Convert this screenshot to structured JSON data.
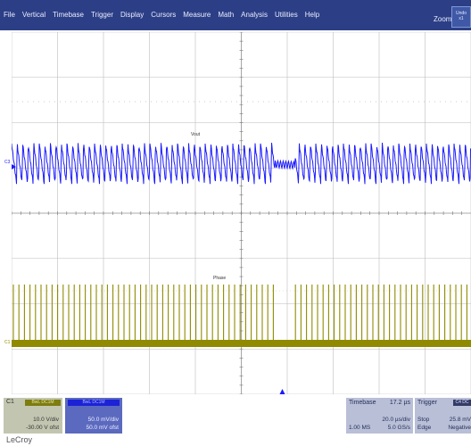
{
  "menu": {
    "items": [
      "File",
      "Vertical",
      "Timebase",
      "Trigger",
      "Display",
      "Cursors",
      "Measure",
      "Math",
      "Analysis",
      "Utilities",
      "Help"
    ],
    "zoom": "Zoom",
    "undo_label": "Undo",
    "undo_sub": "x1"
  },
  "traces": {
    "vout_label": "Vout",
    "phase_label": "Phase",
    "c3_marker": "C3",
    "c1_marker": "C1",
    "colors": {
      "vout": "#1a1aff",
      "phase": "#8f8a00",
      "grid": "#bcbcbc"
    }
  },
  "channel1": {
    "name": "C1",
    "badge": "BwL DC1M",
    "volts_div": "10.0 V/div",
    "offset": "-30.00 V ofst"
  },
  "channel3": {
    "badge": "BwL DC1M",
    "volts_div": "50.0 mV/div",
    "offset": "50.0 mV ofst"
  },
  "timebase": {
    "title": "Timebase",
    "value": "17.2 µs",
    "per_div": "20.0 µs/div",
    "samples": "1.00 MS",
    "rate": "5.0 GS/s"
  },
  "trigger": {
    "title": "Trigger",
    "badge": "C4 DC",
    "mode": "Stop",
    "level": "25.8 mV",
    "type": "Edge",
    "slope": "Negative"
  },
  "brand": "LeCroy"
}
